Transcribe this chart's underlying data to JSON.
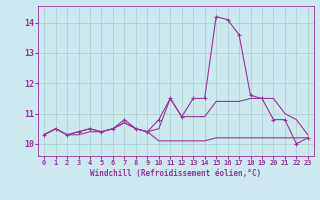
{
  "x": [
    0,
    1,
    2,
    3,
    4,
    5,
    6,
    7,
    8,
    9,
    10,
    11,
    12,
    13,
    14,
    15,
    16,
    17,
    18,
    19,
    20,
    21,
    22,
    23
  ],
  "line1": [
    10.3,
    10.5,
    10.3,
    10.3,
    10.4,
    10.4,
    10.5,
    10.7,
    10.5,
    10.4,
    10.1,
    10.1,
    10.1,
    10.1,
    10.1,
    10.2,
    10.2,
    10.2,
    10.2,
    10.2,
    10.2,
    10.2,
    10.2,
    10.2
  ],
  "line2": [
    10.3,
    10.5,
    10.3,
    10.4,
    10.5,
    10.4,
    10.5,
    10.7,
    10.5,
    10.4,
    10.5,
    11.5,
    10.9,
    10.9,
    10.9,
    11.4,
    11.4,
    11.4,
    11.5,
    11.5,
    11.5,
    11.0,
    10.8,
    10.3
  ],
  "line3_marked": [
    10.3,
    10.5,
    10.3,
    10.4,
    10.5,
    10.4,
    10.5,
    10.8,
    10.5,
    10.4,
    10.8,
    11.5,
    10.9,
    11.5,
    11.5,
    14.2,
    14.1,
    13.6,
    11.6,
    11.5,
    10.8,
    10.8,
    10.0,
    10.2
  ],
  "background_color": "#cce9f0",
  "grid_color": "#aacccc",
  "line_color": "#993399",
  "xlabel": "Windchill (Refroidissement éolien,°C)",
  "ylim_min": 9.6,
  "ylim_max": 14.55,
  "xlim_min": -0.5,
  "xlim_max": 23.5,
  "yticks": [
    10,
    11,
    12,
    13,
    14
  ],
  "xticks": [
    0,
    1,
    2,
    3,
    4,
    5,
    6,
    7,
    8,
    9,
    10,
    11,
    12,
    13,
    14,
    15,
    16,
    17,
    18,
    19,
    20,
    21,
    22,
    23
  ],
  "figwidth": 3.2,
  "figheight": 2.0,
  "dpi": 100
}
